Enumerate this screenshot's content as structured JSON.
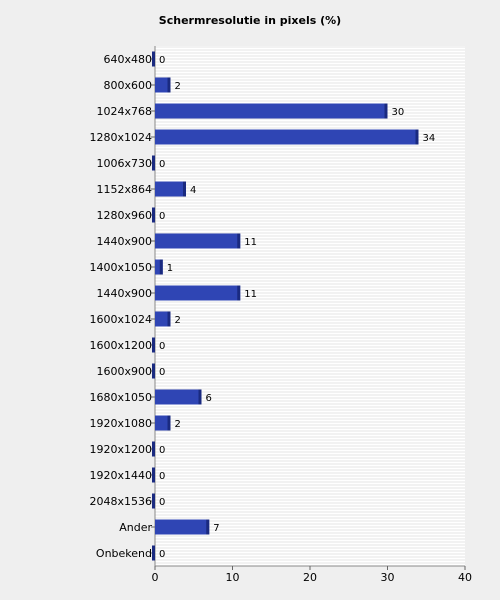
{
  "chart_data": {
    "type": "bar",
    "orientation": "horizontal",
    "title": "Schermresolutie in pixels (%)",
    "xlabel": "",
    "ylabel": "",
    "xlim": [
      0,
      40
    ],
    "x_ticks": [
      0,
      10,
      20,
      30,
      40
    ],
    "grid": true,
    "categories": [
      "640x480",
      "800x600",
      "1024x768",
      "1280x1024",
      "1006x730",
      "1152x864",
      "1280x960",
      "1440x900",
      "1400x1050",
      "1440x900",
      "1600x1024",
      "1600x1200",
      "1600x900",
      "1680x1050",
      "1920x1080",
      "1920x1200",
      "1920x1440",
      "2048x1536",
      "Ander",
      "Onbekend"
    ],
    "values": [
      0,
      2,
      30,
      34,
      0,
      4,
      0,
      11,
      1,
      11,
      2,
      0,
      0,
      6,
      2,
      0,
      0,
      0,
      7,
      0
    ],
    "colors": {
      "bar": "#2f45b4",
      "bar_edge": "#1a2a80",
      "plot_bg": "#ffffff",
      "stripe": "#e4e4e4",
      "page_bg": "#efefef"
    }
  }
}
